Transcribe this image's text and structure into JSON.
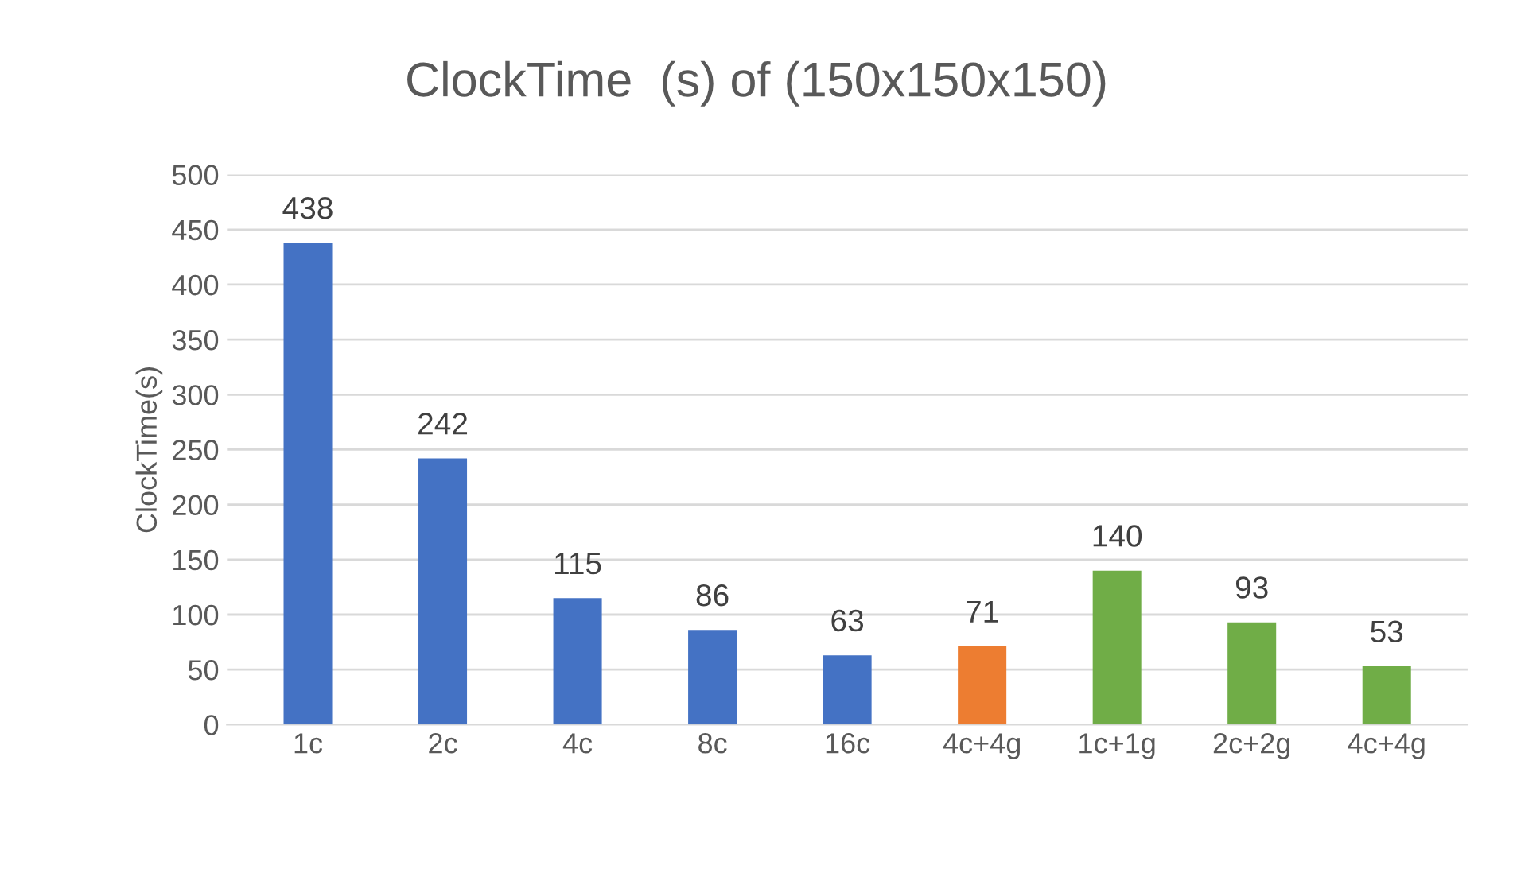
{
  "chart_data": {
    "type": "bar",
    "title": "ClockTime  (s) of (150x150x150)",
    "ylabel": "ClockTime(s)",
    "categories": [
      "1c",
      "2c",
      "4c",
      "8c",
      "16c",
      "4c+4g",
      "1c+1g",
      "2c+2g",
      "4c+4g"
    ],
    "values": [
      438,
      242,
      115,
      86,
      63,
      71,
      140,
      93,
      53
    ],
    "colors": [
      "#4472c4",
      "#4472c4",
      "#4472c4",
      "#4472c4",
      "#4472c4",
      "#ed7d31",
      "#70ad47",
      "#70ad47",
      "#70ad47"
    ],
    "ylim": [
      0,
      500
    ],
    "yticks": [
      0,
      50,
      100,
      150,
      200,
      250,
      300,
      350,
      400,
      450,
      500
    ],
    "grid": "y",
    "data_labels": true
  }
}
